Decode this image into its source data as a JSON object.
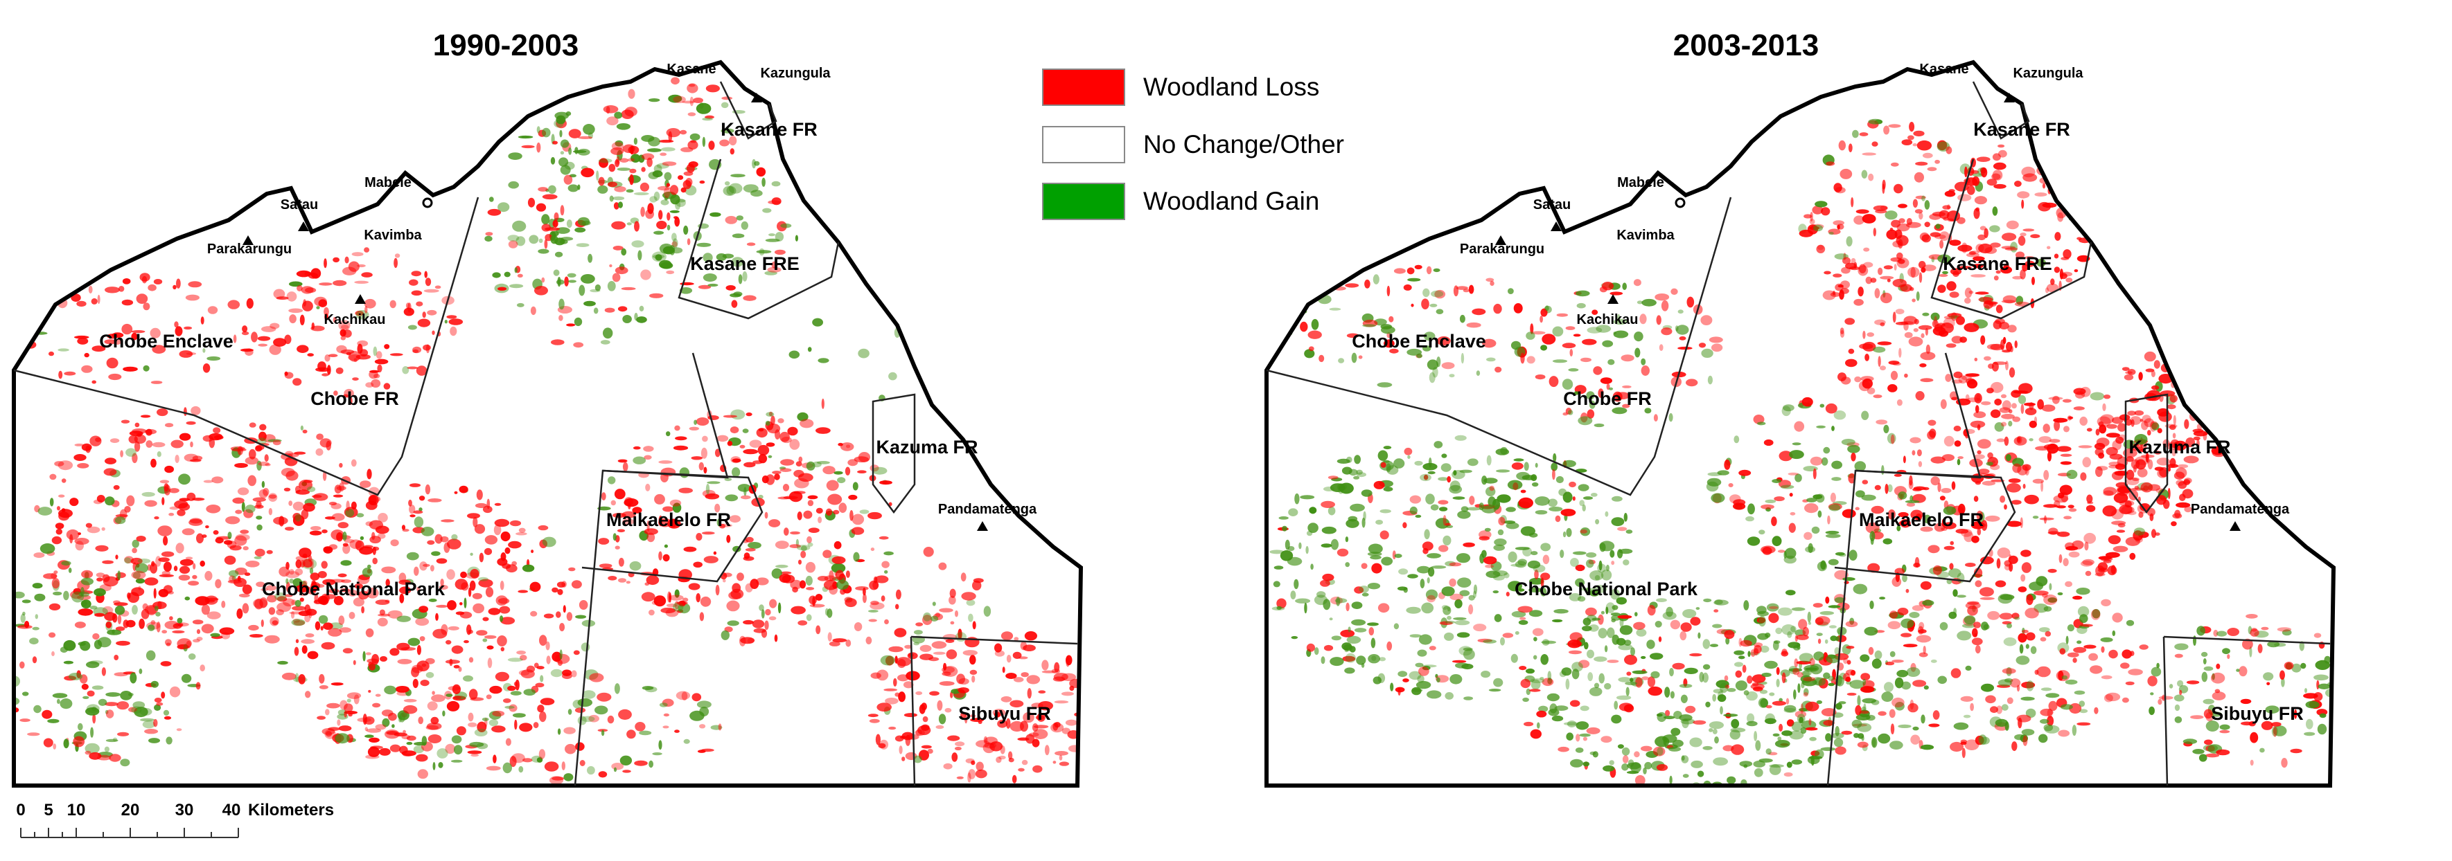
{
  "panels": [
    {
      "title": "1990-2003",
      "places": [
        "Kasane",
        "Kazungula",
        "Mabele",
        "Satau",
        "Parakarungu",
        "Kavimba",
        "Kachikau",
        "Pandamatenga"
      ],
      "regions": [
        "Kasane FR",
        "Kasane FRE",
        "Chobe Enclave",
        "Chobe FR",
        "Kazuma FR",
        "Maikaelelo FR",
        "Chobe National Park",
        "Sibuyu FR"
      ]
    },
    {
      "title": "2003-2013",
      "places": [
        "Kasane",
        "Kazungula",
        "Mabele",
        "Satau",
        "Parakarungu",
        "Kavimba",
        "Kachikau",
        "Pandamatenga"
      ],
      "regions": [
        "Kasane FR",
        "Kasane FRE",
        "Chobe Enclave",
        "Chobe FR",
        "Kazuma FR",
        "Maikaelelo FR",
        "Chobe National Park",
        "Sibuyu FR"
      ]
    }
  ],
  "legend": [
    {
      "label": "Woodland Loss",
      "color": "#ff0000"
    },
    {
      "label": "No Change/Other",
      "color": "#ffffff"
    },
    {
      "label": "Woodland Gain",
      "color": "#00a000"
    }
  ],
  "scale_bar": {
    "ticks": [
      "0",
      "5",
      "10",
      "20",
      "30",
      "40"
    ],
    "unit": "Kilometers"
  },
  "colors": {
    "loss": "#ff0000",
    "gain": "#3f8f12",
    "boundary": "#000000"
  }
}
